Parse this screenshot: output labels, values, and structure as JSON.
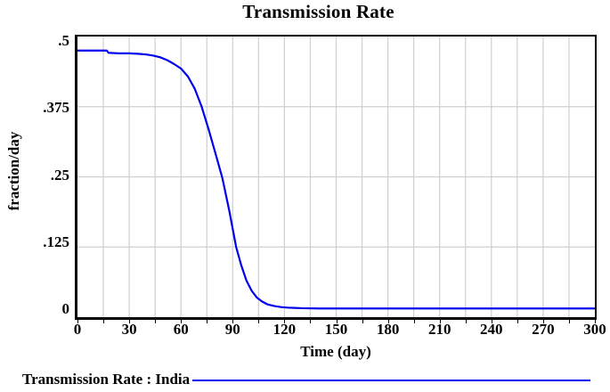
{
  "title": "Transmission Rate",
  "y_axis": {
    "label": "fraction/day",
    "tick_labels": [
      ".5",
      ".375",
      ".25",
      ".125",
      "0"
    ]
  },
  "x_axis": {
    "label": "Time (day)",
    "tick_labels": [
      "0",
      "30",
      "60",
      "90",
      "120",
      "150",
      "180",
      "210",
      "240",
      "270",
      "300"
    ]
  },
  "legend": {
    "label": "Transmission Rate : India"
  },
  "colors": {
    "curve": "#0000ee",
    "grid": "#cfcfcf",
    "axis": "#000000",
    "background": "#ffffff"
  },
  "chart_data": {
    "type": "line",
    "title": "Transmission Rate",
    "xlabel": "Time (day)",
    "ylabel": "fraction/day",
    "xlim": [
      0,
      300
    ],
    "ylim": [
      0,
      0.5
    ],
    "x_label_step": 30,
    "x_grid_step": 15,
    "y_tick_step": 0.125,
    "grid": true,
    "legend_position": "bottom",
    "series": [
      {
        "name": "Transmission Rate : India",
        "color": "#0000ee",
        "x": [
          0,
          8,
          17,
          18,
          24,
          30,
          36,
          40,
          44,
          48,
          52,
          56,
          60,
          64,
          68,
          72,
          76,
          80,
          84,
          88,
          92,
          95,
          98,
          101,
          104,
          107,
          110,
          114,
          118,
          122,
          126,
          130,
          140,
          160,
          200,
          250,
          300
        ],
        "values": [
          0.475,
          0.475,
          0.475,
          0.471,
          0.47,
          0.47,
          0.469,
          0.468,
          0.466,
          0.463,
          0.458,
          0.451,
          0.443,
          0.429,
          0.407,
          0.375,
          0.335,
          0.292,
          0.248,
          0.19,
          0.125,
          0.092,
          0.065,
          0.047,
          0.035,
          0.028,
          0.023,
          0.02,
          0.018,
          0.017,
          0.0165,
          0.016,
          0.0155,
          0.0155,
          0.0155,
          0.0155,
          0.0155
        ]
      }
    ]
  }
}
